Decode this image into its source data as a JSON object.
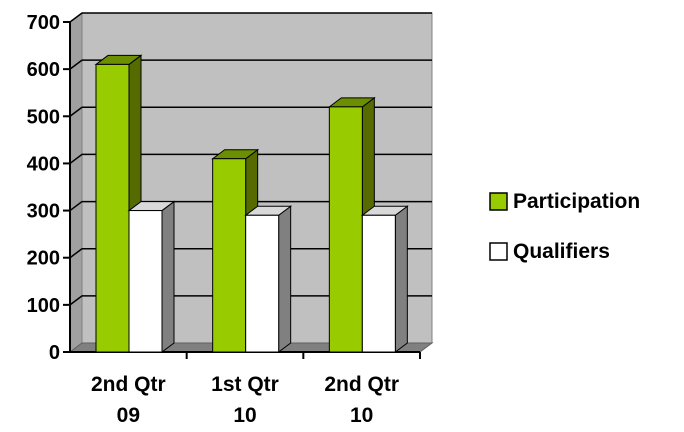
{
  "chart_data": {
    "type": "bar",
    "title": "",
    "xlabel": "",
    "ylabel": "",
    "categories": [
      [
        "2nd Qtr",
        "09"
      ],
      [
        "1st Qtr",
        "10"
      ],
      [
        "2nd Qtr",
        "10"
      ]
    ],
    "series": [
      {
        "name": "Participation",
        "values": [
          610,
          410,
          520
        ],
        "color": "#99cc00"
      },
      {
        "name": "Qualifiers",
        "values": [
          300,
          290,
          290
        ],
        "color": "#ffffff"
      }
    ],
    "ylim": [
      0,
      700
    ],
    "yticks": [
      "0",
      "100",
      "200",
      "300",
      "400",
      "500",
      "600",
      "700"
    ],
    "grid": true,
    "plot_background": "#c0c0c0",
    "legend_placement": "right",
    "three_d": true
  }
}
